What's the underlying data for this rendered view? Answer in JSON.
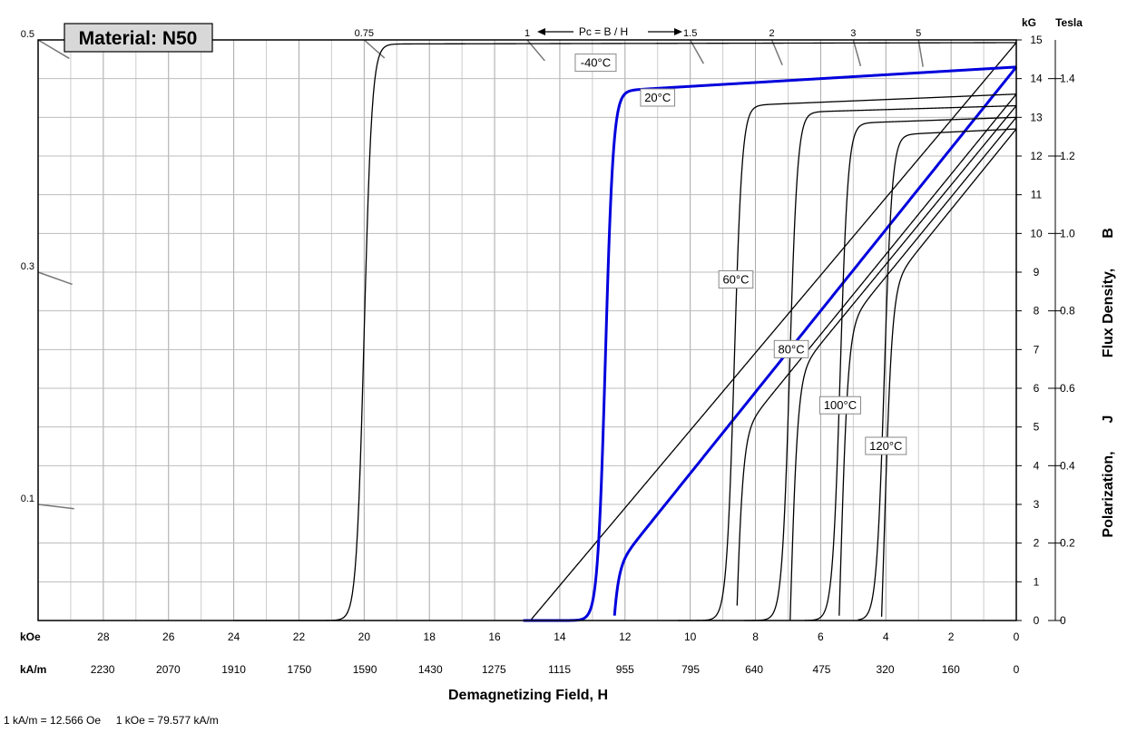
{
  "chart_data": {
    "type": "line",
    "title": "Material: N50",
    "xlabel": "Demagnetizing Field, H",
    "ylabel_parts": [
      "Polarization,",
      "J",
      "Flux Density,",
      "B"
    ],
    "x_units": {
      "koe": "kOe",
      "kam": "kA/m"
    },
    "y_units": {
      "kg": "kG",
      "tesla": "Tesla"
    },
    "footnote": "1 kA/m = 12.566 Oe     1 kOe = 79.577 kA/m",
    "pc_label": "Pc = B / H",
    "xlim_koe": [
      30,
      0
    ],
    "ylim_kg": [
      0,
      15
    ],
    "x_ticks_koe": [
      28,
      26,
      24,
      22,
      20,
      18,
      16,
      14,
      12,
      10,
      8,
      6,
      4,
      2,
      0
    ],
    "x_ticks_kam": [
      {
        "h": 28.02,
        "label": "2230"
      },
      {
        "h": 26.01,
        "label": "2070"
      },
      {
        "h": 24.0,
        "label": "1910"
      },
      {
        "h": 21.99,
        "label": "1750"
      },
      {
        "h": 19.98,
        "label": "1590"
      },
      {
        "h": 17.97,
        "label": "1430"
      },
      {
        "h": 16.02,
        "label": "1275"
      },
      {
        "h": 14.01,
        "label": "1115"
      },
      {
        "h": 12.0,
        "label": "955"
      },
      {
        "h": 9.99,
        "label": "795"
      },
      {
        "h": 8.04,
        "label": "640"
      },
      {
        "h": 5.97,
        "label": "475"
      },
      {
        "h": 4.02,
        "label": "320"
      },
      {
        "h": 2.01,
        "label": "160"
      },
      {
        "h": 0,
        "label": "0"
      }
    ],
    "y_ticks_kg": [
      0,
      1,
      2,
      3,
      4,
      5,
      6,
      7,
      8,
      9,
      10,
      11,
      12,
      13,
      14,
      15
    ],
    "y_ticks_tesla": [
      {
        "kg": 0,
        "label": "0"
      },
      {
        "kg": 2,
        "label": "0.2"
      },
      {
        "kg": 4,
        "label": "0.4"
      },
      {
        "kg": 6,
        "label": "0.6"
      },
      {
        "kg": 8,
        "label": "0.8"
      },
      {
        "kg": 10,
        "label": "1.0"
      },
      {
        "kg": 12,
        "label": "1.2"
      },
      {
        "kg": 14,
        "label": "1.4"
      }
    ],
    "pc_top_labels": [
      {
        "label": "0.75",
        "pc": 0.75
      },
      {
        "label": "1",
        "pc": 1
      },
      {
        "label": "1.5",
        "pc": 1.5
      },
      {
        "label": "2",
        "pc": 2
      },
      {
        "label": "3",
        "pc": 3
      },
      {
        "label": "5",
        "pc": 5
      }
    ],
    "pc_left_labels": [
      {
        "label": "0.5",
        "pc": 0.5
      },
      {
        "label": "0.3",
        "pc": 0.3
      },
      {
        "label": "0.1",
        "pc": 0.1
      }
    ],
    "series": [
      {
        "name": "-40°C",
        "br": 14.93,
        "slope": 0.0018,
        "hcj": 20.0,
        "sharp": 0.12,
        "color": "#000000",
        "width": 1.3
      },
      {
        "name": "20°C",
        "br": 14.3,
        "slope": 0.05,
        "hcj": 12.6,
        "sharp": 0.12,
        "color": "#0000dd",
        "width": 3
      },
      {
        "name": "60°C",
        "br": 13.6,
        "slope": 0.035,
        "hcj": 8.65,
        "sharp": 0.12,
        "color": "#000000",
        "width": 1.3
      },
      {
        "name": "80°C",
        "br": 13.3,
        "slope": 0.025,
        "hcj": 6.95,
        "sharp": 0.12,
        "color": "#000000",
        "width": 1.3
      },
      {
        "name": "100°C",
        "br": 13.0,
        "slope": 0.03,
        "hcj": 5.4,
        "sharp": 0.12,
        "color": "#000000",
        "width": 1.3
      },
      {
        "name": "120°C",
        "br": 12.7,
        "slope": 0.04,
        "hcj": 4.05,
        "sharp": 0.12,
        "color": "#000000",
        "width": 1.3
      }
    ],
    "series_labels": [
      {
        "text": "-40°C",
        "h": 12.9,
        "b": 14.4
      },
      {
        "text": "20°C",
        "h": 11.0,
        "b": 13.5
      },
      {
        "text": "60°C",
        "h": 8.6,
        "b": 8.8
      },
      {
        "text": "80°C",
        "h": 6.9,
        "b": 7.0
      },
      {
        "text": "100°C",
        "h": 5.4,
        "b": 5.55
      },
      {
        "text": "120°C",
        "h": 4.0,
        "b": 4.5
      }
    ]
  }
}
